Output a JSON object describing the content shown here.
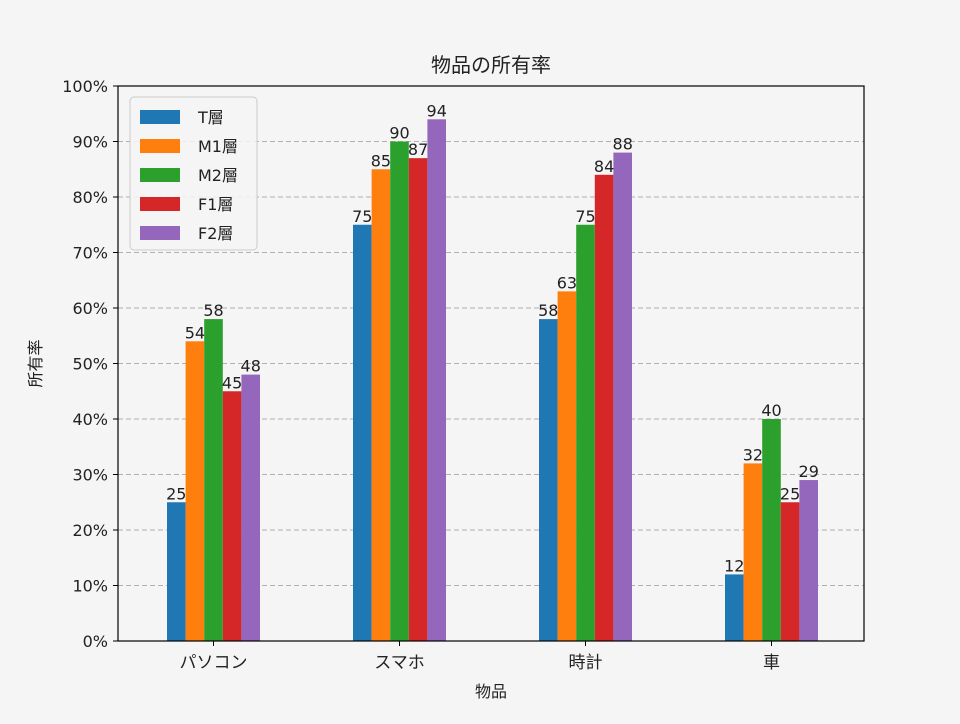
{
  "chart_data": {
    "type": "bar",
    "title": "物品の所有率",
    "xlabel": "物品",
    "ylabel": "所有率",
    "categories": [
      "パソコン",
      "スマホ",
      "時計",
      "車"
    ],
    "series": [
      {
        "name": "T層",
        "color": "#1f77b4",
        "values": [
          25,
          75,
          58,
          12
        ]
      },
      {
        "name": "M1層",
        "color": "#ff7f0e",
        "values": [
          54,
          85,
          63,
          32
        ]
      },
      {
        "name": "M2層",
        "color": "#2ca02c",
        "values": [
          58,
          90,
          75,
          40
        ]
      },
      {
        "name": "F1層",
        "color": "#d62728",
        "values": [
          45,
          87,
          84,
          25
        ]
      },
      {
        "name": "F2層",
        "color": "#9467bd",
        "values": [
          48,
          94,
          88,
          29
        ]
      }
    ],
    "ylim": [
      0,
      100
    ],
    "yticks": [
      0,
      10,
      20,
      30,
      40,
      50,
      60,
      70,
      80,
      90,
      100
    ],
    "ytick_labels": [
      "0%",
      "10%",
      "20%",
      "30%",
      "40%",
      "50%",
      "60%",
      "70%",
      "80%",
      "90%",
      "100%"
    ],
    "grid": "y-dashed",
    "legend_position": "top-left"
  }
}
